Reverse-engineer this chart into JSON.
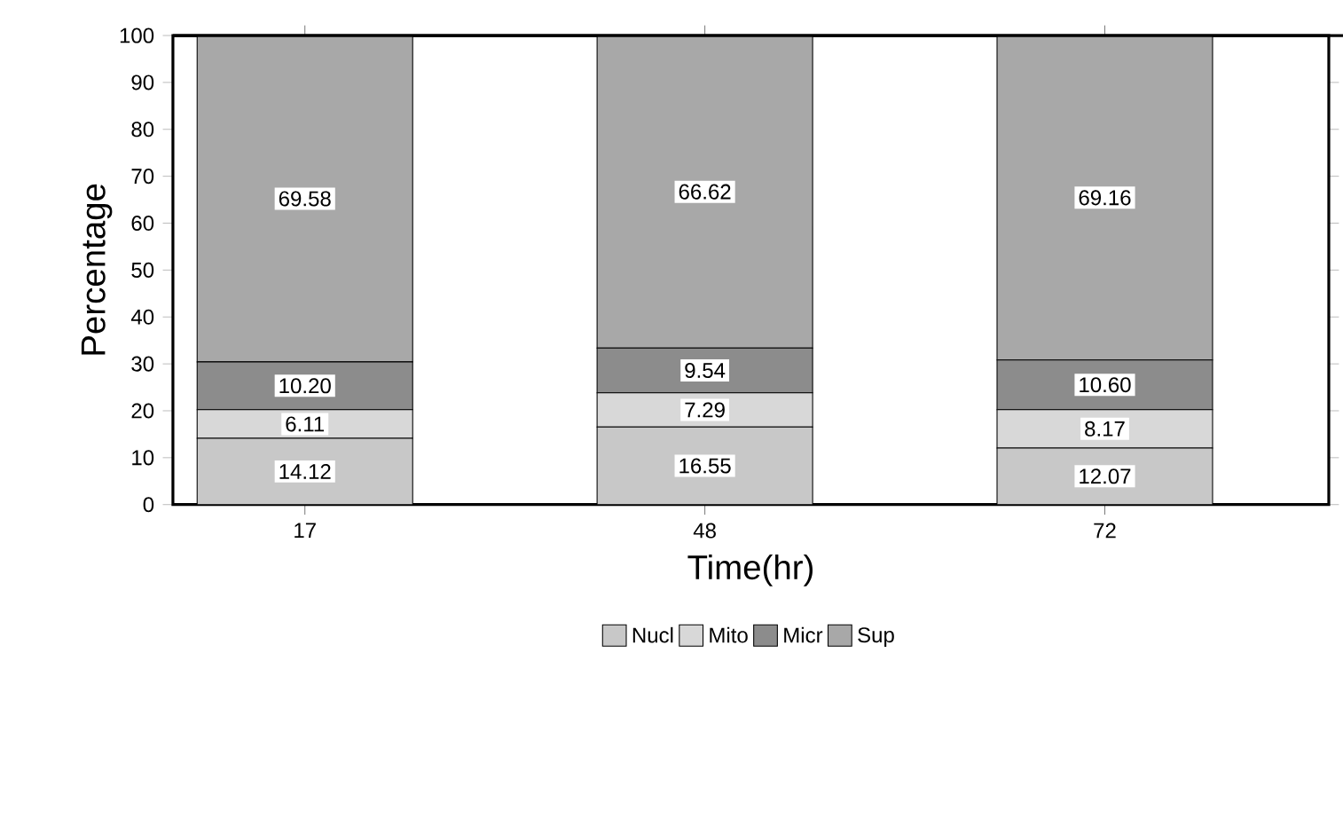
{
  "chart_data": {
    "type": "bar",
    "stacked": true,
    "xlabel": "Time(hr)",
    "ylabel": "Percentage",
    "categories": [
      "17",
      "48",
      "72"
    ],
    "series": [
      {
        "name": "Nucl",
        "color": "#c8c8c8",
        "values": [
          14.12,
          16.55,
          12.07
        ],
        "value_labels": [
          "14.12",
          "16.55",
          "12.07"
        ]
      },
      {
        "name": "Mito",
        "color": "#d8d8d8",
        "values": [
          6.11,
          7.29,
          8.17
        ],
        "value_labels": [
          "6.11",
          "7.29",
          "8.17"
        ]
      },
      {
        "name": "Micr",
        "color": "#8c8c8c",
        "values": [
          10.2,
          9.54,
          10.6
        ],
        "value_labels": [
          "10.20",
          "9.54",
          "10.60"
        ]
      },
      {
        "name": "Sup",
        "color": "#a8a8a8",
        "values": [
          69.58,
          66.62,
          69.16
        ],
        "value_labels": [
          "69.58",
          "66.62",
          "69.16"
        ]
      }
    ],
    "ylim": [
      0,
      100
    ],
    "yticks": [
      0,
      10,
      20,
      30,
      40,
      50,
      60,
      70,
      80,
      90,
      100
    ],
    "legend": "bottom"
  }
}
